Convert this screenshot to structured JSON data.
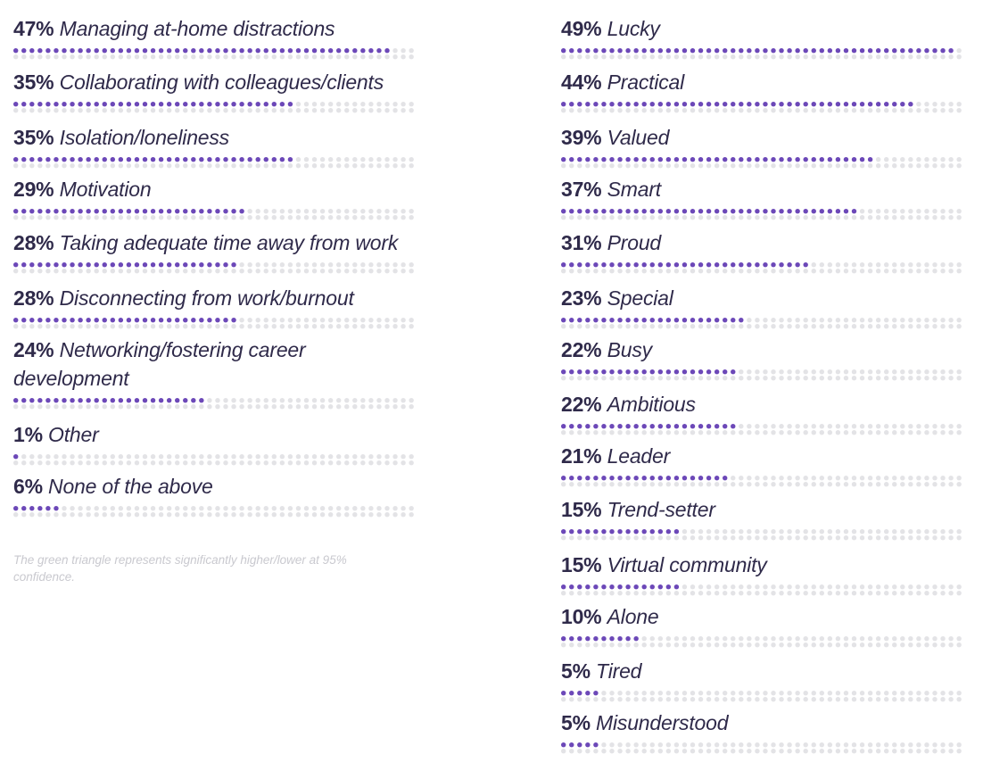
{
  "chart_data": [
    {
      "type": "bar",
      "style": "dot-matrix horizontal bars",
      "categories": [
        "Managing at-home distractions",
        "Collaborating with colleagues/clients",
        "Isolation/loneliness",
        "Motivation",
        "Taking adequate time away from work",
        "Disconnecting from work/burnout",
        "Networking/fostering career development",
        "Other",
        "None of the above"
      ],
      "values": [
        47,
        35,
        35,
        29,
        28,
        28,
        24,
        1,
        6
      ],
      "value_labels": [
        "47%",
        "35%",
        "35%",
        "29%",
        "28%",
        "28%",
        "24%",
        "1%",
        "6%"
      ],
      "xlim": [
        0,
        50
      ]
    },
    {
      "type": "bar",
      "style": "dot-matrix horizontal bars",
      "categories": [
        "Lucky",
        "Practical",
        "Valued",
        "Smart",
        "Proud",
        "Special",
        "Busy",
        "Ambitious",
        "Leader",
        "Trend-setter",
        "Virtual community",
        "Alone",
        "Tired",
        "Misunderstood"
      ],
      "values": [
        49,
        44,
        39,
        37,
        31,
        23,
        22,
        22,
        21,
        15,
        15,
        10,
        5,
        5
      ],
      "value_labels": [
        "49%",
        "44%",
        "39%",
        "37%",
        "31%",
        "23%",
        "22%",
        "22%",
        "21%",
        "15%",
        "15%",
        "10%",
        "5%",
        "5%"
      ],
      "xlim": [
        0,
        50
      ]
    }
  ],
  "footnote": "The green triangle represents significantly higher/lower at 95% confidence.",
  "colors": {
    "filled_dot": "#6c48b8",
    "empty_dot": "#e3e3e6",
    "label_text": "#2f2a4a",
    "footnote_text": "#c9c9cf"
  }
}
